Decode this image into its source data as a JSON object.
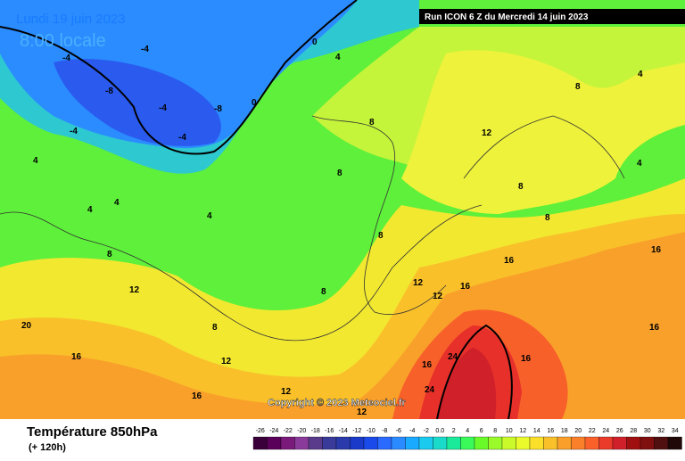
{
  "header": {
    "date": "Lundi 19 juin 2023",
    "time": "8:00 locale",
    "run": "Run ICON 6 Z du Mercredi 14 juin 2023"
  },
  "copyright": "Copyright © 2023 Meteociel.fr",
  "footer": {
    "title": "Température 850hPa",
    "lead": "(+ 120h)"
  },
  "legend": {
    "labels": [
      "-26",
      "-24",
      "-22",
      "-20",
      "-18",
      "-16",
      "-14",
      "-12",
      "-10",
      "-8",
      "-6",
      "-4",
      "-2",
      "0.0",
      "2",
      "4",
      "6",
      "8",
      "10",
      "12",
      "14",
      "16",
      "18",
      "20",
      "22",
      "24",
      "26",
      "28",
      "30",
      "32",
      "34"
    ],
    "colors": [
      "#3a003a",
      "#5a005a",
      "#7a1a7a",
      "#8a3a9a",
      "#5a3a8a",
      "#3a3a9a",
      "#2a3aaa",
      "#1a3aca",
      "#1a4aea",
      "#2a6aff",
      "#2a8aff",
      "#1aaaff",
      "#1acaef",
      "#1adaca",
      "#1aea9a",
      "#3afa5a",
      "#6afa2a",
      "#9afa2a",
      "#cafa2a",
      "#eafa2a",
      "#fae02a",
      "#fac02a",
      "#faa02a",
      "#fa802a",
      "#fa602a",
      "#ea3a2a",
      "#d0202a",
      "#a01010",
      "#801010",
      "#501010",
      "#200808"
    ]
  },
  "contour_labels": [
    "-8",
    "-4",
    "-4",
    "-8",
    "-4",
    "-4",
    "-4",
    "0",
    "0",
    "4",
    "4",
    "4",
    "4",
    "4",
    "4",
    "8",
    "8",
    "8",
    "8",
    "8",
    "8",
    "8",
    "12",
    "12",
    "12",
    "12",
    "12",
    "16",
    "16",
    "16",
    "16",
    "16",
    "20",
    "24",
    "24",
    "16",
    "12",
    "16",
    "4",
    "8",
    "16",
    "12",
    "8"
  ]
}
